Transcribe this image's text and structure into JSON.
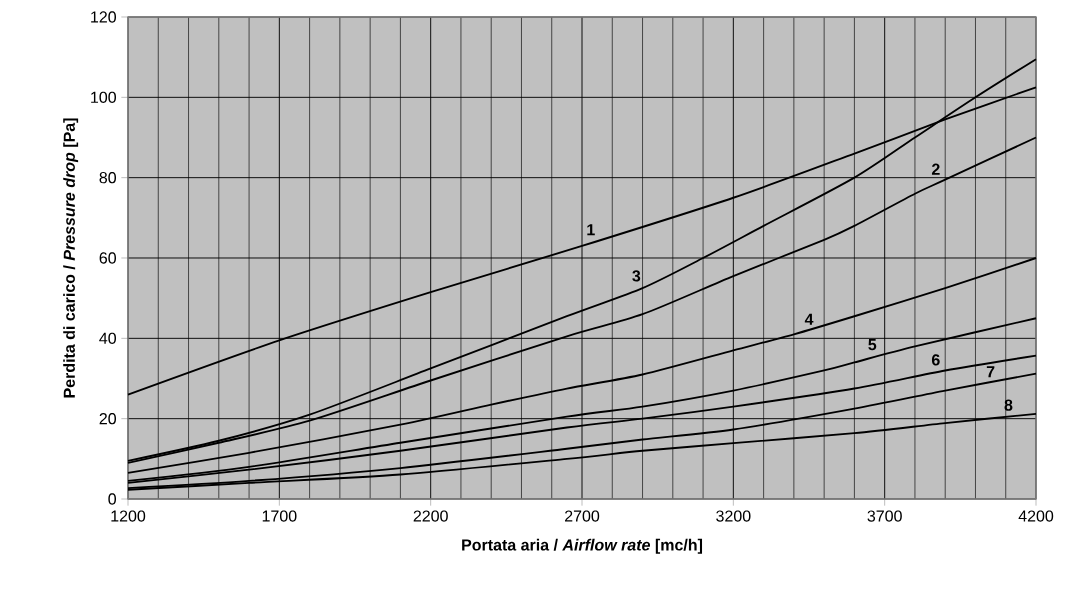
{
  "chart_data": {
    "type": "line",
    "xlabel": "Portata aria / *Airflow rate* [mc/h]",
    "ylabel": "Perdita di carico / *Pressure drop* [Pa]",
    "xlim": [
      1200,
      4200
    ],
    "xticks": [
      1200,
      1700,
      2200,
      2700,
      3200,
      3700,
      4200
    ],
    "ylim": [
      0,
      120
    ],
    "yticks": [
      0,
      20,
      40,
      60,
      80,
      100,
      120
    ],
    "grid": true,
    "marker": "none",
    "line_style": "solid",
    "series": [
      {
        "name": "1",
        "color": "#000000",
        "x": [
          1200,
          1700,
          2200,
          2700,
          3200,
          3600,
          3900,
          4200
        ],
        "values": [
          26,
          39.5,
          51.5,
          63,
          75,
          86,
          94.5,
          102.5
        ]
      },
      {
        "name": "2",
        "color": "#000000",
        "x": [
          1200,
          1500,
          1800,
          2200,
          2650,
          2900,
          3200,
          3500,
          3600,
          3800,
          3900,
          4200
        ],
        "values": [
          9,
          14,
          19.5,
          29.5,
          40.5,
          46,
          55.5,
          64.5,
          68,
          76,
          79.5,
          90
        ]
      },
      {
        "name": "3",
        "color": "#000000",
        "x": [
          1200,
          1500,
          1800,
          2200,
          2650,
          2900,
          3100,
          3300,
          3600,
          3800,
          4000,
          4200
        ],
        "values": [
          9.5,
          14.5,
          21,
          32.5,
          45.5,
          52.5,
          60,
          68,
          80,
          90,
          100,
          109.5
        ]
      },
      {
        "name": "4",
        "color": "#000000",
        "x": [
          1200,
          1600,
          2100,
          2400,
          2650,
          2900,
          3200,
          3400,
          3600,
          3900,
          4200
        ],
        "values": [
          6.5,
          11.5,
          18.5,
          23.5,
          27.5,
          31,
          37,
          41,
          45.5,
          52.5,
          60
        ]
      },
      {
        "name": "5",
        "color": "#000000",
        "x": [
          1200,
          1600,
          2100,
          2650,
          2900,
          3200,
          3500,
          3600,
          3800,
          4200
        ],
        "values": [
          4.5,
          8,
          14,
          20.5,
          23,
          27,
          32,
          34,
          38,
          45
        ]
      },
      {
        "name": "6",
        "color": "#000000",
        "x": [
          1200,
          1600,
          2100,
          2650,
          2900,
          3200,
          3600,
          3900,
          4200
        ],
        "values": [
          4,
          7.3,
          12,
          17.8,
          20,
          23,
          27.5,
          32,
          35.7
        ]
      },
      {
        "name": "7",
        "color": "#000000",
        "x": [
          1200,
          1600,
          2100,
          2650,
          2900,
          3200,
          3600,
          3900,
          4200
        ],
        "values": [
          2.7,
          4.5,
          7.7,
          12.5,
          14.8,
          17.3,
          22.5,
          27,
          31.2
        ]
      },
      {
        "name": "8",
        "color": "#000000",
        "x": [
          1200,
          1600,
          2100,
          2650,
          2900,
          3200,
          3600,
          3900,
          4200
        ],
        "values": [
          2.3,
          4,
          6.1,
          10,
          12,
          13.9,
          16.4,
          18.9,
          21.2
        ]
      }
    ]
  }
}
